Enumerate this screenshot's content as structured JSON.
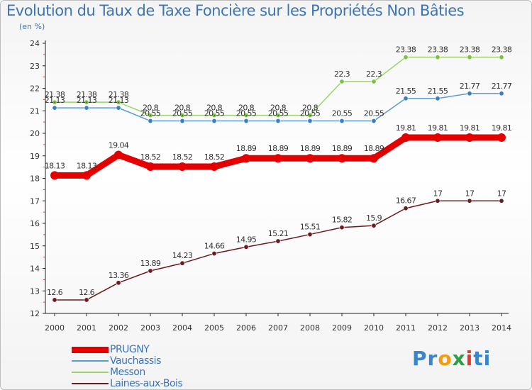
{
  "chart_data": {
    "type": "line",
    "title": "Evolution du Taux de Taxe Foncière sur les Propriétés Non Bâties",
    "subtitle": "(en %)",
    "xlabel": "",
    "ylabel": "",
    "categories": [
      "2000",
      "2001",
      "2002",
      "2003",
      "2004",
      "2005",
      "2006",
      "2007",
      "2008",
      "2009",
      "2010",
      "2011",
      "2012",
      "2013",
      "2014"
    ],
    "ylim": [
      12,
      24
    ],
    "yticks": [
      12,
      13,
      14,
      15,
      16,
      17,
      18,
      19,
      20,
      21,
      22,
      23,
      24
    ],
    "grid": false,
    "legend_position": "bottom-left",
    "series": [
      {
        "name": "Laines-aux-Bois",
        "color": "#6b1a1f",
        "marker_color": "#6b1a1f",
        "values": [
          12.6,
          12.6,
          13.36,
          13.89,
          14.23,
          14.66,
          14.95,
          15.21,
          15.51,
          15.82,
          15.9,
          16.67,
          17,
          17,
          17
        ],
        "labels": [
          "12.6",
          "12.6",
          "13.36",
          "13.89",
          "14.23",
          "14.66",
          "14.95",
          "15.21",
          "15.51",
          "15.82",
          "15.9",
          "16.67",
          "17",
          "17",
          "17"
        ]
      },
      {
        "name": "Vauchassis",
        "color": "#5d9bd3",
        "marker_color": "#3a7fc2",
        "values": [
          21.13,
          21.13,
          21.13,
          20.55,
          20.55,
          20.55,
          20.55,
          20.55,
          20.55,
          20.55,
          20.55,
          21.55,
          21.55,
          21.77,
          21.77
        ],
        "labels": [
          "21.13",
          "21.13",
          "21.13",
          "20.55",
          "20.55",
          "20.55",
          "20.55",
          "20.55",
          "20.55",
          "20.55",
          "20.55",
          "21.55",
          "21.55",
          "21.77",
          "21.77"
        ]
      },
      {
        "name": "Messon",
        "color": "#9ad46a",
        "marker_color": "#7cc142",
        "values": [
          21.38,
          21.38,
          21.38,
          20.8,
          20.8,
          20.8,
          20.8,
          20.8,
          20.8,
          22.3,
          22.3,
          23.38,
          23.38,
          23.38,
          23.38
        ],
        "labels": [
          "21.38",
          "21.38",
          "21.38",
          "20.8",
          "20.8",
          "20.8",
          "20.8",
          "20.8",
          "20.8",
          "22.3",
          "22.3",
          "23.38",
          "23.38",
          "23.38",
          "23.38"
        ]
      },
      {
        "name": "PRUGNY",
        "color": "#e50000",
        "marker_color": "#e50000",
        "values": [
          18.13,
          18.13,
          19.04,
          18.52,
          18.52,
          18.52,
          18.89,
          18.89,
          18.89,
          18.89,
          18.89,
          19.81,
          19.81,
          19.81,
          19.81
        ],
        "labels": [
          "18.13",
          "18.13",
          "19.04",
          "18.52",
          "18.52",
          "18.52",
          "18.89",
          "18.89",
          "18.89",
          "18.89",
          "18.89",
          "19.81",
          "19.81",
          "19.81",
          "19.81"
        ]
      }
    ],
    "legend_order": [
      "PRUGNY",
      "Vauchassis",
      "Messon",
      "Laines-aux-Bois"
    ]
  },
  "brand": {
    "letters": [
      "P",
      "r",
      "o",
      "x",
      "i",
      "t",
      "i"
    ],
    "colors": [
      "#3a86c8",
      "#3a86c8",
      "#f39c12",
      "#2e9e45",
      "#e03a2f",
      "#3a86c8",
      "#3a86c8"
    ]
  }
}
